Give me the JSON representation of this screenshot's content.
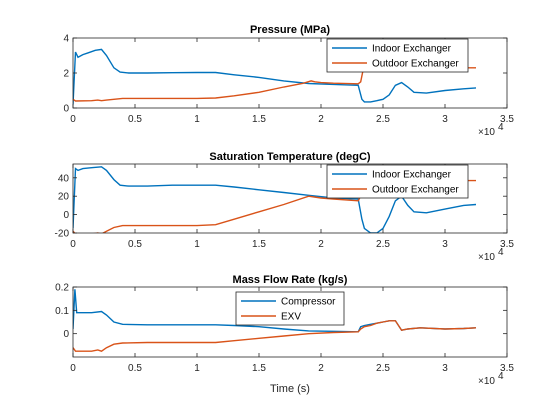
{
  "colors": {
    "series1": "#0072BD",
    "series2": "#D95319",
    "axes": "#262626",
    "background": "#ffffff"
  },
  "chart_data": [
    {
      "type": "line",
      "title": "Pressure (MPa)",
      "xlabel": "",
      "ylabel": "",
      "xlim": [
        0,
        35000
      ],
      "ylim": [
        0,
        4
      ],
      "xticks": [
        0,
        5000,
        10000,
        15000,
        20000,
        25000,
        30000,
        35000
      ],
      "xtick_labels": [
        "0",
        "0.5",
        "1",
        "1.5",
        "2",
        "2.5",
        "3",
        "3.5"
      ],
      "yticks": [
        0,
        2,
        4
      ],
      "ytick_labels": [
        "0",
        "2",
        "4"
      ],
      "x_exponent": "×10",
      "x_exponent_power": "4",
      "grid": false,
      "legend_position": "top-right",
      "series": [
        {
          "name": "Indoor Exchanger",
          "x": [
            0,
            200,
            400,
            800,
            1200,
            1800,
            2300,
            2700,
            3300,
            3800,
            4500,
            6000,
            8000,
            10000,
            11500,
            13000,
            15000,
            17000,
            19000,
            21000,
            23000,
            23300,
            23500,
            24000,
            24500,
            25000,
            25500,
            26000,
            26500,
            27000,
            27500,
            28500,
            30000,
            31500,
            32500
          ],
          "y": [
            0.2,
            3.2,
            2.9,
            3.05,
            3.15,
            3.3,
            3.35,
            3.0,
            2.3,
            2.05,
            2.0,
            2.0,
            2.02,
            2.03,
            2.03,
            1.9,
            1.75,
            1.55,
            1.4,
            1.35,
            1.3,
            0.5,
            0.35,
            0.35,
            0.42,
            0.5,
            0.75,
            1.3,
            1.45,
            1.2,
            0.9,
            0.85,
            1.0,
            1.1,
            1.15
          ]
        },
        {
          "name": "Outdoor Exchanger",
          "x": [
            0,
            200,
            1500,
            2000,
            2300,
            2700,
            3300,
            4000,
            6000,
            8000,
            10000,
            11500,
            13000,
            15000,
            17000,
            18500,
            19200,
            19500,
            20000,
            21000,
            23000,
            23200,
            23400,
            24000,
            25000,
            26000,
            26500,
            27000,
            28000,
            30000,
            31500,
            32500
          ],
          "y": [
            0.5,
            0.4,
            0.42,
            0.45,
            0.42,
            0.45,
            0.5,
            0.55,
            0.55,
            0.55,
            0.55,
            0.57,
            0.7,
            0.9,
            1.2,
            1.4,
            1.55,
            1.5,
            1.45,
            1.42,
            1.38,
            1.5,
            2.2,
            2.3,
            2.35,
            2.4,
            2.3,
            2.3,
            2.35,
            2.3,
            2.3,
            2.3
          ]
        }
      ]
    },
    {
      "type": "line",
      "title": "Saturation Temperature (degC)",
      "xlabel": "",
      "ylabel": "",
      "xlim": [
        0,
        35000
      ],
      "ylim": [
        -20,
        55
      ],
      "xticks": [
        0,
        5000,
        10000,
        15000,
        20000,
        25000,
        30000,
        35000
      ],
      "xtick_labels": [
        "0",
        "0.5",
        "1",
        "1.5",
        "2",
        "2.5",
        "3",
        "3.5"
      ],
      "yticks": [
        -20,
        0,
        20,
        40
      ],
      "ytick_labels": [
        "-20",
        "0",
        "20",
        "40"
      ],
      "x_exponent": "×10",
      "x_exponent_power": "4",
      "grid": false,
      "legend_position": "top-right",
      "series": [
        {
          "name": "Indoor Exchanger",
          "x": [
            0,
            200,
            400,
            800,
            1500,
            2300,
            2700,
            3300,
            3800,
            4500,
            6000,
            8000,
            10000,
            11500,
            13000,
            15000,
            17000,
            19000,
            21000,
            23000,
            23300,
            23500,
            24000,
            24500,
            25000,
            25500,
            26000,
            26500,
            27000,
            27500,
            28500,
            30000,
            31500,
            32500
          ],
          "y": [
            -15,
            50,
            48,
            50,
            51,
            52,
            48,
            38,
            32,
            31,
            31,
            32,
            32,
            32,
            30,
            27,
            24,
            21,
            18,
            17,
            -5,
            -15,
            -20,
            -20,
            -15,
            -2,
            15,
            20,
            10,
            3,
            2,
            6,
            10,
            11
          ]
        },
        {
          "name": "Outdoor Exchanger",
          "x": [
            0,
            200,
            1500,
            2000,
            2300,
            2700,
            3300,
            4000,
            6000,
            8000,
            10000,
            11500,
            13000,
            15000,
            17000,
            19000,
            20000,
            21000,
            23000,
            23200,
            23400,
            24000,
            25000,
            26000,
            27000,
            28000,
            30000,
            31500,
            32500
          ],
          "y": [
            -18,
            -21,
            -21,
            -20,
            -21,
            -18,
            -14,
            -12,
            -12,
            -12,
            -12,
            -11,
            -5,
            3,
            11,
            20,
            18,
            17,
            15,
            20,
            35,
            36,
            37,
            37,
            36,
            37,
            37,
            37,
            37
          ]
        }
      ]
    },
    {
      "type": "line",
      "title": "Mass Flow Rate (kg/s)",
      "xlabel": "Time (s)",
      "ylabel": "",
      "xlim": [
        0,
        35000
      ],
      "ylim": [
        -0.1,
        0.2
      ],
      "xticks": [
        0,
        5000,
        10000,
        15000,
        20000,
        25000,
        30000,
        35000
      ],
      "xtick_labels": [
        "0",
        "0.5",
        "1",
        "1.5",
        "2",
        "2.5",
        "3",
        "3.5"
      ],
      "yticks": [
        0,
        0.1,
        0.2
      ],
      "ytick_labels": [
        "0",
        "0.1",
        "0.2"
      ],
      "x_exponent": "×10",
      "x_exponent_power": "4",
      "grid": false,
      "legend_position": "top-center",
      "series": [
        {
          "name": "Compressor",
          "x": [
            0,
            150,
            300,
            800,
            1500,
            2300,
            2700,
            3300,
            4000,
            6000,
            8000,
            10000,
            11500,
            13000,
            15000,
            17000,
            19000,
            21000,
            23000,
            23200,
            23500,
            24000,
            24500,
            25000,
            25500,
            26000,
            26500,
            27000,
            28000,
            30000,
            31500,
            32500
          ],
          "y": [
            0.02,
            0.19,
            0.09,
            0.09,
            0.09,
            0.095,
            0.08,
            0.05,
            0.04,
            0.038,
            0.038,
            0.038,
            0.038,
            0.035,
            0.03,
            0.02,
            0.012,
            0.01,
            0.008,
            0.03,
            0.035,
            0.04,
            0.045,
            0.05,
            0.055,
            0.055,
            0.015,
            0.02,
            0.025,
            0.02,
            0.022,
            0.025
          ]
        },
        {
          "name": "EXV",
          "x": [
            0,
            200,
            1500,
            2000,
            2300,
            2700,
            3300,
            4000,
            6000,
            8000,
            10000,
            11500,
            13000,
            15000,
            17000,
            19000,
            21000,
            23000,
            23200,
            23500,
            24000,
            24500,
            25000,
            25500,
            26000,
            26500,
            27000,
            28000,
            30000,
            31500,
            32500
          ],
          "y": [
            -0.06,
            -0.075,
            -0.075,
            -0.07,
            -0.075,
            -0.06,
            -0.045,
            -0.04,
            -0.038,
            -0.038,
            -0.038,
            -0.038,
            -0.03,
            -0.02,
            -0.01,
            0.0,
            0.005,
            0.008,
            0.02,
            0.03,
            0.035,
            0.045,
            0.05,
            0.055,
            0.055,
            0.015,
            0.02,
            0.025,
            0.02,
            0.022,
            0.025
          ]
        }
      ]
    }
  ]
}
